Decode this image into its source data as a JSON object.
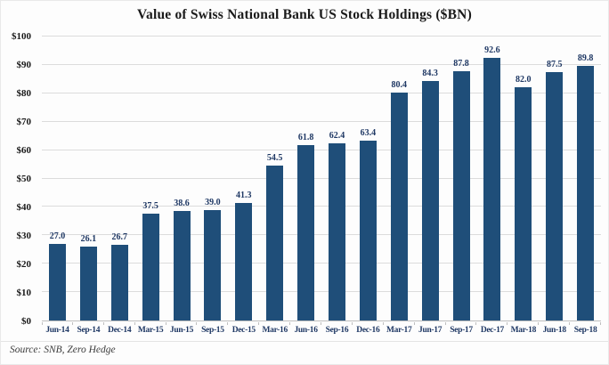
{
  "source_note": "Source: SNB, Zero Hedge",
  "colors": {
    "bar": "#1F4E79",
    "grid": "#DCDCDC",
    "value_label": "#1F3864",
    "axis_label": "#1F3864"
  },
  "chart_data": {
    "type": "bar",
    "title": "Value of Swiss National Bank US Stock Holdings ($BN)",
    "categories": [
      "Jun-14",
      "Sep-14",
      "Dec-14",
      "Mar-15",
      "Jun-15",
      "Sep-15",
      "Dec-15",
      "Mar-16",
      "Jun-16",
      "Sep-16",
      "Dec-16",
      "Mar-17",
      "Jun-17",
      "Sep-17",
      "Dec-17",
      "Mar-18",
      "Jun-18",
      "Sep-18"
    ],
    "values": [
      27.0,
      26.1,
      26.7,
      37.5,
      38.6,
      39.0,
      41.3,
      54.5,
      61.8,
      62.4,
      63.4,
      80.4,
      84.3,
      87.8,
      92.6,
      82.0,
      87.5,
      89.8
    ],
    "value_labels": [
      "27.0",
      "26.1",
      "26.7",
      "37.5",
      "38.6",
      "39.0",
      "41.3",
      "54.5",
      "61.8",
      "62.4",
      "63.4",
      "80.4",
      "84.3",
      "87.8",
      "92.6",
      "82.0",
      "87.5",
      "89.8"
    ],
    "xlabel": "",
    "ylabel": "",
    "ylim": [
      0,
      100
    ],
    "ytick_step": 10,
    "ytick_prefix": "$",
    "grid": true,
    "legend": false
  }
}
